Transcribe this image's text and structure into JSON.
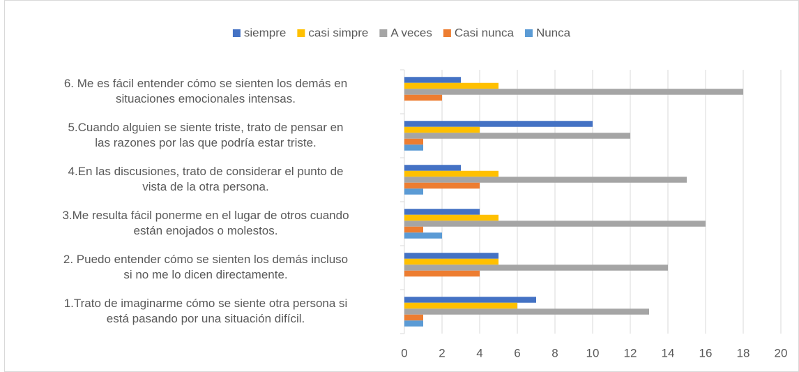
{
  "chart_data": {
    "type": "bar",
    "orientation": "horizontal",
    "categories": [
      [
        "1.Trato de imaginarme cómo se siente otra persona si",
        "está pasando por una situación difícil."
      ],
      [
        "2. Puedo entender cómo se sienten los demás incluso",
        "si no me lo dicen directamente."
      ],
      [
        "3.Me resulta fácil ponerme en el lugar de otros cuando",
        "están enojados o molestos."
      ],
      [
        "4.En las discusiones, trato de considerar el punto de",
        "vista de la otra persona."
      ],
      [
        "5.Cuando alguien se siente triste, trato de pensar en",
        "las razones por las que podría estar triste."
      ],
      [
        "6. Me es fácil entender cómo se sienten los demás en",
        "situaciones emocionales intensas."
      ]
    ],
    "series": [
      {
        "name": "siempre",
        "color": "#4472c4",
        "values": [
          7,
          5,
          4,
          3,
          10,
          3
        ]
      },
      {
        "name": "casi simpre",
        "color": "#ffc000",
        "values": [
          6,
          5,
          5,
          5,
          4,
          5
        ]
      },
      {
        "name": "A veces",
        "color": "#a5a5a5",
        "values": [
          13,
          14,
          16,
          15,
          12,
          18
        ]
      },
      {
        "name": "Casi nunca",
        "color": "#ed7d31",
        "values": [
          1,
          4,
          1,
          4,
          1,
          2
        ]
      },
      {
        "name": "Nunca",
        "color": "#5b9bd5",
        "values": [
          1,
          0,
          2,
          1,
          1,
          0
        ]
      }
    ],
    "xlim": [
      0,
      20
    ],
    "xticks": [
      0,
      2,
      4,
      6,
      8,
      10,
      12,
      14,
      16,
      18,
      20
    ],
    "grid": true,
    "legend": "top"
  }
}
